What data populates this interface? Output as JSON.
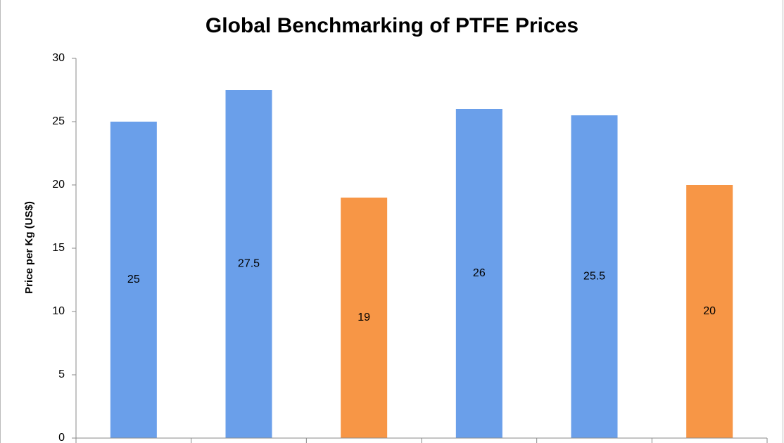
{
  "chart_data": {
    "type": "bar",
    "title": "Global Benchmarking of PTFE Prices",
    "y_label": "Price per Kg (US$)",
    "categories": [
      null,
      null,
      null,
      null,
      null,
      null
    ],
    "values": [
      25,
      27.5,
      19,
      26,
      25.5,
      20
    ],
    "colors": [
      "#6a9fea",
      "#6a9fea",
      "#f79646",
      "#6a9fea",
      "#6a9fea",
      "#f79646"
    ],
    "ylim": [
      0,
      30
    ],
    "yticks": [
      0,
      5,
      10,
      15,
      20,
      25,
      30
    ],
    "grid": false
  }
}
